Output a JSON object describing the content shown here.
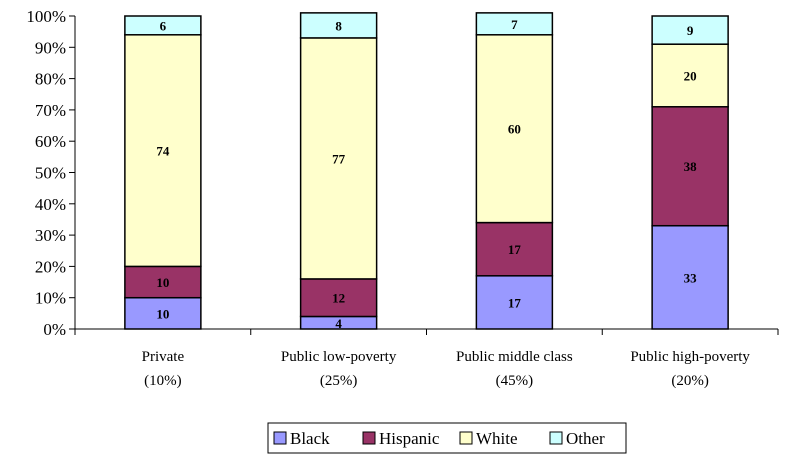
{
  "chart_data": {
    "type": "bar",
    "stacked": true,
    "percent": true,
    "categories": [
      "Private",
      "Public low-poverty",
      "Public middle class",
      "Public high-poverty"
    ],
    "category_sublabels": [
      "(10%)",
      "(25%)",
      "(45%)",
      "(20%)"
    ],
    "series": [
      {
        "name": "Black",
        "values": [
          10,
          4,
          17,
          33
        ],
        "color": "#9999ff"
      },
      {
        "name": "Hispanic",
        "values": [
          10,
          12,
          17,
          38
        ],
        "color": "#993366"
      },
      {
        "name": "White",
        "values": [
          74,
          77,
          60,
          20
        ],
        "color": "#ffffcc"
      },
      {
        "name": "Other",
        "values": [
          6,
          8,
          7,
          9
        ],
        "color": "#ccffff"
      }
    ],
    "y_ticks": [
      "0%",
      "10%",
      "20%",
      "30%",
      "40%",
      "50%",
      "60%",
      "70%",
      "80%",
      "90%",
      "100%"
    ],
    "ylim": [
      0,
      100
    ],
    "grid": false,
    "legend": "bottom"
  }
}
